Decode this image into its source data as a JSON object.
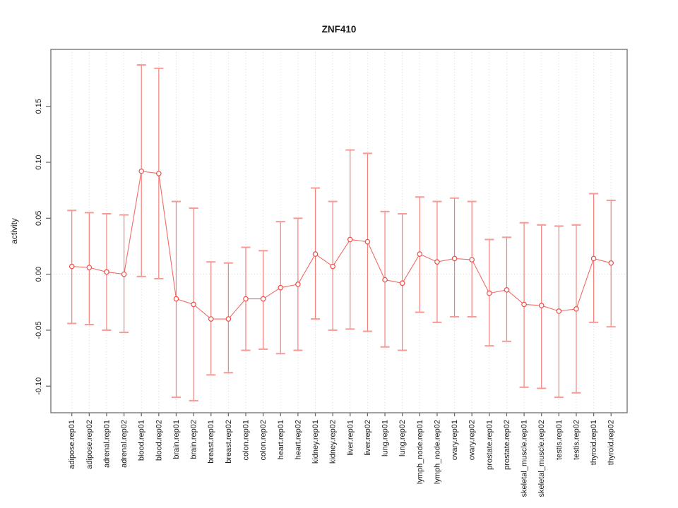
{
  "chart_data": {
    "type": "line",
    "subtype": "points-with-error-bars",
    "title": "ZNF410",
    "xlabel": "",
    "ylabel": "activity",
    "legend": "none",
    "grid": "vertical dotted gridline at every category; dotted horizontal line at y=0",
    "ylim": [
      -0.1238,
      0.2009
    ],
    "yticks": [
      {
        "value": 0.15,
        "label": "0.15"
      },
      {
        "value": 0.1,
        "label": "0.10"
      },
      {
        "value": 0.05,
        "label": "0.05"
      },
      {
        "value": 0.0,
        "label": "0.00"
      },
      {
        "value": -0.05,
        "label": "-0.05"
      },
      {
        "value": -0.1,
        "label": "-0.10"
      }
    ],
    "categories": [
      "adipose.rep01",
      "adipose.rep02",
      "adrenal.rep01",
      "adrenal.rep02",
      "blood.rep01",
      "blood.rep02",
      "brain.rep01",
      "brain.rep02",
      "breast.rep01",
      "breast.rep02",
      "colon.rep01",
      "colon.rep02",
      "heart.rep01",
      "heart.rep02",
      "kidney.rep01",
      "kidney.rep02",
      "liver.rep01",
      "liver.rep02",
      "lung.rep01",
      "lung.rep02",
      "lymph_node.rep01",
      "lymph_node.rep02",
      "ovary.rep01",
      "ovary.rep02",
      "prostate.rep01",
      "prostate.rep02",
      "skeletal_muscle.rep01",
      "skeletal_muscle.rep02",
      "testis.rep01",
      "testis.rep02",
      "thyroid.rep01",
      "thyroid.rep02"
    ],
    "series": [
      {
        "name": "ZNF410 activity",
        "values": [
          0.007,
          0.006,
          0.002,
          0.0,
          0.092,
          0.09,
          -0.022,
          -0.027,
          -0.04,
          -0.04,
          -0.022,
          -0.022,
          -0.012,
          -0.009,
          0.018,
          0.007,
          0.031,
          0.029,
          -0.005,
          -0.008,
          0.018,
          0.011,
          0.014,
          0.013,
          -0.017,
          -0.014,
          -0.027,
          -0.028,
          -0.033,
          -0.031,
          0.014,
          0.01
        ],
        "upper": [
          0.057,
          0.055,
          0.054,
          0.053,
          0.187,
          0.184,
          0.065,
          0.059,
          0.011,
          0.01,
          0.024,
          0.021,
          0.047,
          0.05,
          0.077,
          0.065,
          0.111,
          0.108,
          0.056,
          0.054,
          0.069,
          0.065,
          0.068,
          0.065,
          0.031,
          0.033,
          0.046,
          0.044,
          0.043,
          0.044,
          0.072,
          0.066
        ],
        "lower": [
          -0.044,
          -0.045,
          -0.05,
          -0.052,
          -0.002,
          -0.004,
          -0.11,
          -0.113,
          -0.09,
          -0.088,
          -0.068,
          -0.067,
          -0.071,
          -0.068,
          -0.04,
          -0.05,
          -0.049,
          -0.051,
          -0.065,
          -0.068,
          -0.034,
          -0.043,
          -0.038,
          -0.038,
          -0.064,
          -0.06,
          -0.101,
          -0.102,
          -0.11,
          -0.106,
          -0.043,
          -0.047
        ]
      }
    ],
    "colors": {
      "point": "#ef4e49",
      "line": "#f26b66",
      "errorbar": "#f4807b",
      "cap": "#f79a96",
      "grid": "#d8d8d8",
      "zero_line": "#dcdcdc",
      "frame": "#6e6e6e",
      "text": "#1a1a1a"
    }
  }
}
